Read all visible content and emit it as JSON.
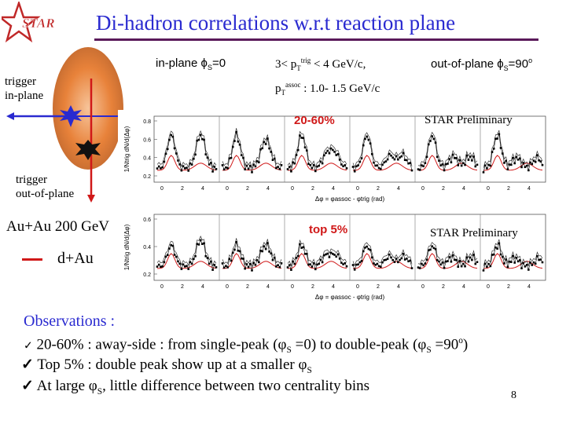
{
  "slide": {
    "title": "Di-hadron correlations w.r.t reaction plane",
    "logo_text": "STAR",
    "page_number": "8"
  },
  "header_labels": {
    "in_plane": "in-plane ϕS=0",
    "in_plane_prefix": "in-plane ϕ",
    "in_plane_sub": "S",
    "in_plane_suffix": "=0",
    "pt_trig_prefix": "3< p",
    "pt_trig_sub": "T",
    "pt_trig_sup": "trig",
    "pt_trig_suffix": " < 4 GeV/c,",
    "out_plane_prefix": "out-of-plane ϕ",
    "out_plane_sub": "S",
    "out_plane_suffix": "=90",
    "out_plane_sup": "o",
    "pt_assoc_prefix": "p",
    "pt_assoc_sub": "T",
    "pt_assoc_sup": "assoc",
    "pt_assoc_suffix": " : 1.0- 1.5 GeV/c"
  },
  "diagram": {
    "trigger_in_plane_1": "trigger",
    "trigger_in_plane_2": "in-plane",
    "trigger_out_plane_1": "trigger",
    "trigger_out_plane_2": "out-of-plane"
  },
  "legend": {
    "auau": "Au+Au 200 GeV",
    "dau": "d+Au"
  },
  "panels": {
    "top": {
      "centrality": "20-60%",
      "preliminary": "STAR Preliminary",
      "ylabel": "1/Ntrig dN/d(Δφ)",
      "xlabel": "Δφ = φassoc - φtrig (rad)",
      "y_ticks": [
        "0.8",
        "0.6",
        "0.4",
        "0.2"
      ],
      "x_ticks": [
        "0",
        "2",
        "4",
        "0",
        "2",
        "4",
        "0",
        "2",
        "4",
        "0",
        "2",
        "4",
        "0",
        "2",
        "4",
        "0",
        "2",
        "4"
      ]
    },
    "bottom": {
      "centrality": "top 5%",
      "preliminary": "STAR Preliminary",
      "ylabel": "1/Ntrig dN/d(Δφ)",
      "xlabel": "Δφ = φassoc - φtrig (rad)",
      "y_ticks": [
        "0.6",
        "0.4",
        "0.2"
      ],
      "x_ticks": [
        "0",
        "2",
        "4",
        "0",
        "2",
        "4",
        "0",
        "2",
        "4",
        "0",
        "2",
        "4",
        "0",
        "2",
        "4",
        "0",
        "2",
        "4"
      ]
    }
  },
  "observations": {
    "heading": "Observations :",
    "item1": "20-60% : away-side : from single-peak (φS =0) to double-peak (φS =90o)",
    "item1_a": " 20-60% : away-side : from single-peak (φ",
    "item1_b": "S",
    "item1_c": " =0) to double-peak (φ",
    "item1_d": "S",
    "item1_e": " =90",
    "item1_f": "o",
    "item1_g": ")",
    "item2_a": " Top 5% : double peak show up at a smaller φ",
    "item2_b": "S",
    "item3_a": " At large φ",
    "item3_b": "S",
    "item3_c": ", little difference between two centrality bins"
  },
  "colors": {
    "title": "#2a2ad0",
    "accent_red": "#d01818",
    "ellipse": "#e8823a",
    "arrow_blue": "#2a2ad0"
  }
}
